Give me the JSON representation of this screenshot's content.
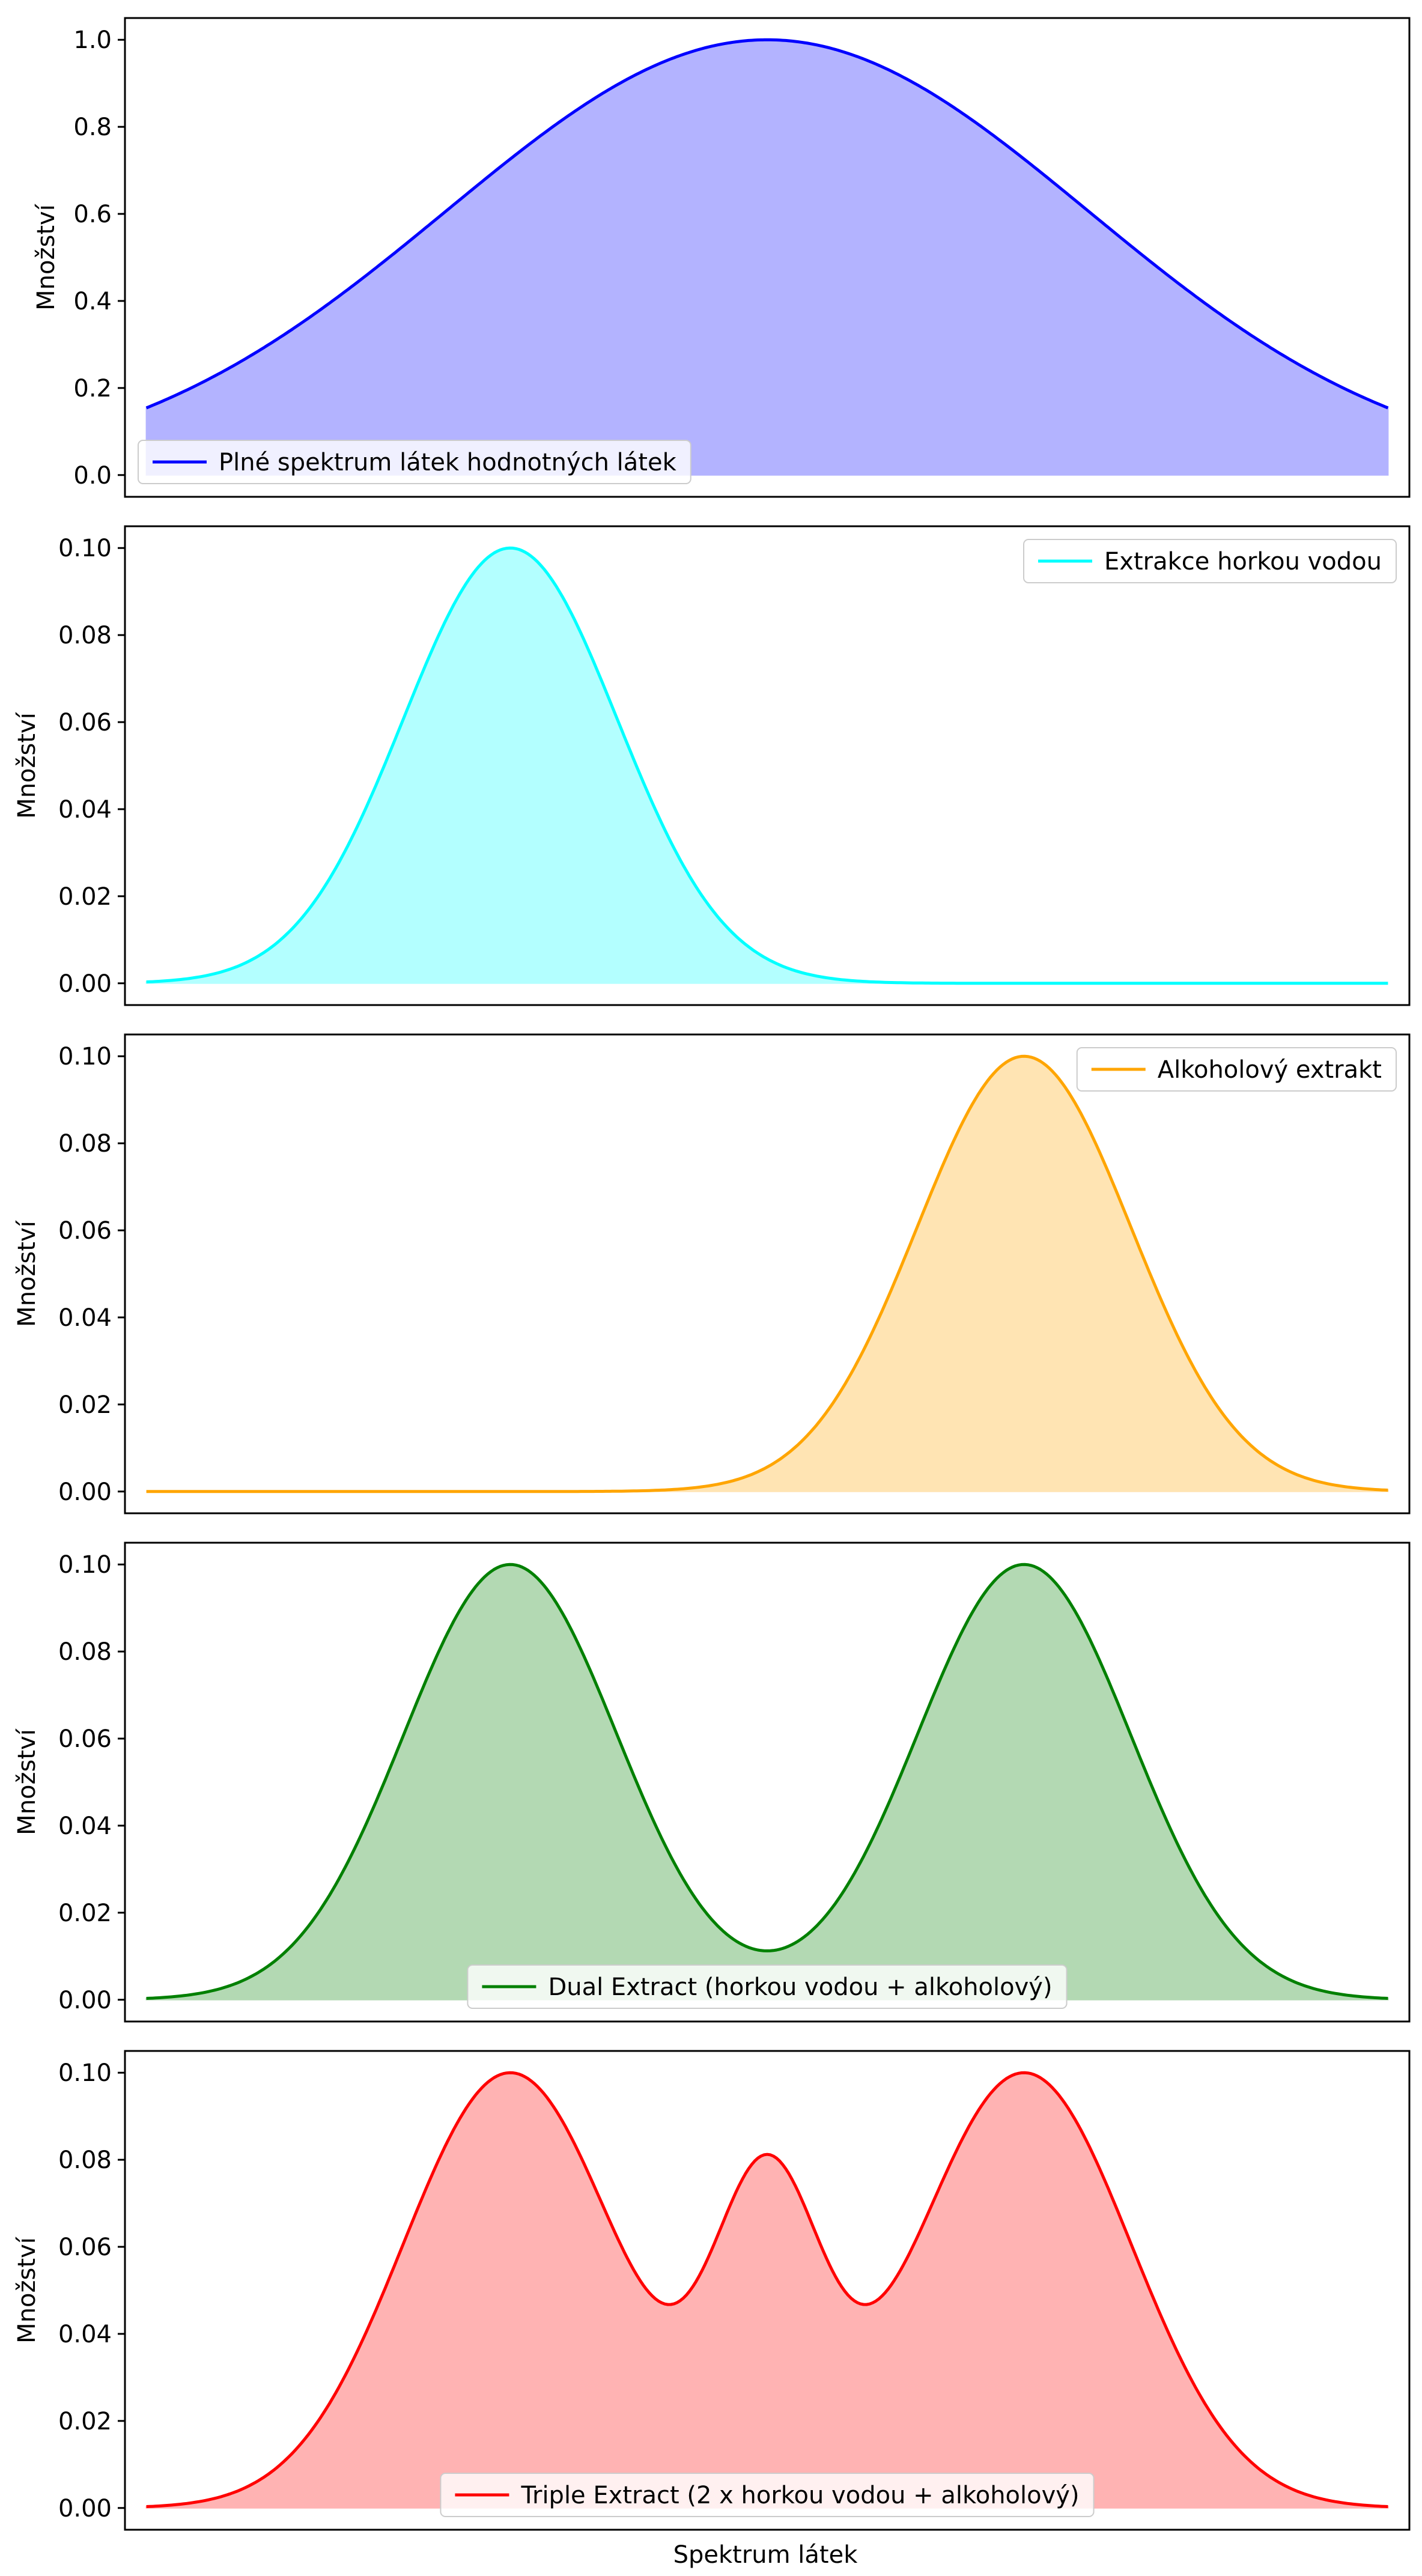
{
  "figure": {
    "xlabel": "Spektrum látek"
  },
  "chart_data": [
    {
      "type": "area",
      "title": "",
      "xlabel": "",
      "ylabel": "Množství",
      "xlim": [
        -3,
        3
      ],
      "ylim": [
        -0.05,
        1.05
      ],
      "yticks": [
        "0.0",
        "0.2",
        "0.4",
        "0.6",
        "0.8",
        "1.0"
      ],
      "ytick_values": [
        0,
        0.2,
        0.4,
        0.6,
        0.8,
        1.0
      ],
      "legend_position": "lower-left",
      "series": [
        {
          "name": "Plné spektrum látek hodnotných látek",
          "color": "#0000ff",
          "fill": "#b3b3ff",
          "components": [
            {
              "amplitude": 1.0,
              "center": 0,
              "sigma": 1.5
            }
          ]
        }
      ]
    },
    {
      "type": "area",
      "title": "",
      "xlabel": "",
      "ylabel": "Množství",
      "xlim": [
        -3,
        3
      ],
      "ylim": [
        -0.005,
        0.105
      ],
      "yticks": [
        "0.00",
        "0.02",
        "0.04",
        "0.06",
        "0.08",
        "0.10"
      ],
      "ytick_values": [
        0,
        0.02,
        0.04,
        0.06,
        0.08,
        0.1
      ],
      "legend_position": "upper-right",
      "series": [
        {
          "name": "Extrakce horkou vodou",
          "color": "#00ffff",
          "fill": "#b3ffff",
          "components": [
            {
              "amplitude": 0.1,
              "center": -1.2,
              "sigma": 0.5
            }
          ]
        }
      ]
    },
    {
      "type": "area",
      "title": "",
      "xlabel": "",
      "ylabel": "Množství",
      "xlim": [
        -3,
        3
      ],
      "ylim": [
        -0.005,
        0.105
      ],
      "yticks": [
        "0.00",
        "0.02",
        "0.04",
        "0.06",
        "0.08",
        "0.10"
      ],
      "ytick_values": [
        0,
        0.02,
        0.04,
        0.06,
        0.08,
        0.1
      ],
      "legend_position": "upper-right",
      "series": [
        {
          "name": "Alkoholový extrakt",
          "color": "#ffa500",
          "fill": "#ffe4b3",
          "components": [
            {
              "amplitude": 0.1,
              "center": 1.2,
              "sigma": 0.5
            }
          ]
        }
      ]
    },
    {
      "type": "area",
      "title": "",
      "xlabel": "",
      "ylabel": "Množství",
      "xlim": [
        -3,
        3
      ],
      "ylim": [
        -0.005,
        0.105
      ],
      "yticks": [
        "0.00",
        "0.02",
        "0.04",
        "0.06",
        "0.08",
        "0.10"
      ],
      "ytick_values": [
        0,
        0.02,
        0.04,
        0.06,
        0.08,
        0.1
      ],
      "legend_position": "lower-center",
      "series": [
        {
          "name": "Dual Extract (horkou vodou + alkoholový)",
          "color": "#008000",
          "fill": "#b3d9b3",
          "components": [
            {
              "amplitude": 0.1,
              "center": -1.2,
              "sigma": 0.5
            },
            {
              "amplitude": 0.1,
              "center": 1.2,
              "sigma": 0.5
            }
          ]
        }
      ]
    },
    {
      "type": "area",
      "title": "",
      "xlabel": "Spektrum látek",
      "ylabel": "Množství",
      "xlim": [
        -3,
        3
      ],
      "ylim": [
        -0.005,
        0.105
      ],
      "yticks": [
        "0.00",
        "0.02",
        "0.04",
        "0.06",
        "0.08",
        "0.10"
      ],
      "ytick_values": [
        0,
        0.02,
        0.04,
        0.06,
        0.08,
        0.1
      ],
      "legend_position": "lower-center",
      "series": [
        {
          "name": "Triple Extract (2 x horkou vodou + alkoholový)",
          "color": "#ff0000",
          "fill": "#ffb3b3",
          "components": [
            {
              "amplitude": 0.1,
              "center": -1.2,
              "sigma": 0.5
            },
            {
              "amplitude": 0.1,
              "center": 1.2,
              "sigma": 0.5
            },
            {
              "amplitude": 0.07,
              "center": 0,
              "sigma": 0.25
            }
          ]
        }
      ]
    }
  ]
}
